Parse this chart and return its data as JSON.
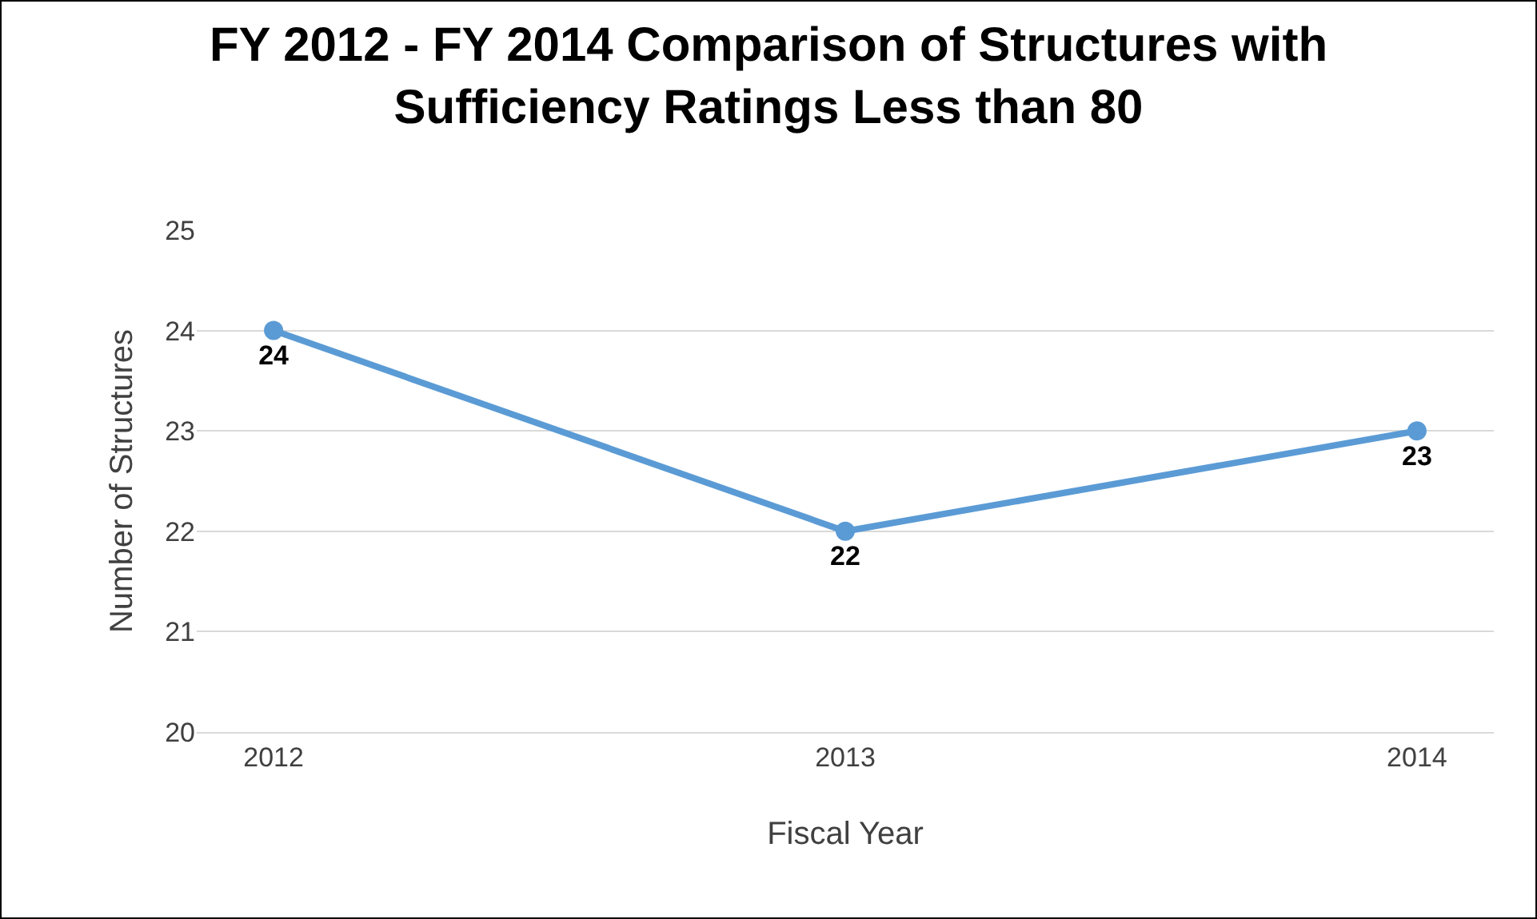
{
  "chart_data": {
    "type": "line",
    "title": "FY 2012 - FY 2014 Comparison of Structures with\nSufficiency Ratings Less than 80",
    "xlabel": "Fiscal Year",
    "ylabel": "Number of Structures",
    "categories": [
      "2012",
      "2013",
      "2014"
    ],
    "series": [
      {
        "color": "#5b9bd5",
        "values": [
          24,
          22,
          23
        ]
      }
    ],
    "ylim": [
      20,
      25
    ],
    "yticks": [
      20,
      21,
      22,
      23,
      24,
      25
    ],
    "grid": "y",
    "marker": "circle",
    "line_style": "solid",
    "data_labels": true,
    "legend": false
  }
}
